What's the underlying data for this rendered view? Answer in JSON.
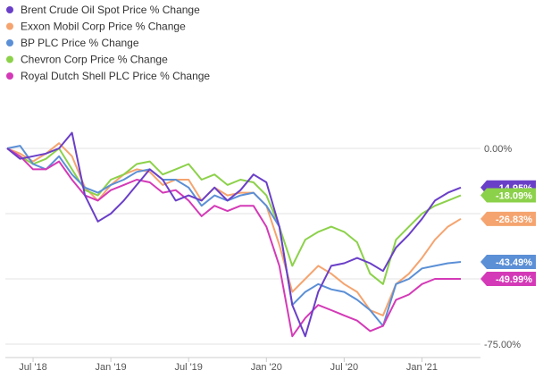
{
  "chart_data": {
    "type": "line",
    "title": "",
    "xlabel": "",
    "ylabel": "",
    "x_tick_labels": [
      "Jul '18",
      "Jan '19",
      "Jul '19",
      "Jan '20",
      "Jul '20",
      "Jan '21"
    ],
    "y_tick_labels": [
      "0.00%",
      "-75.00%"
    ],
    "ylim": [
      -78,
      8
    ],
    "grid": "horizontal",
    "legend_position": "top-left",
    "x": [
      "2018-05",
      "2018-06",
      "2018-07",
      "2018-08",
      "2018-09",
      "2018-10",
      "2018-11",
      "2018-12",
      "2019-01",
      "2019-02",
      "2019-03",
      "2019-04",
      "2019-05",
      "2019-06",
      "2019-07",
      "2019-08",
      "2019-09",
      "2019-10",
      "2019-11",
      "2019-12",
      "2020-01",
      "2020-02",
      "2020-03",
      "2020-04",
      "2020-05",
      "2020-06",
      "2020-07",
      "2020-08",
      "2020-09",
      "2020-10",
      "2020-11",
      "2020-12",
      "2021-01",
      "2021-02",
      "2021-03",
      "2021-04"
    ],
    "series": [
      {
        "name": "Brent Crude Oil Spot Price % Change",
        "color": "#6a3fc8",
        "end_label": "-14.95%",
        "values": [
          0.0,
          -4.0,
          -3.0,
          -2.0,
          0.0,
          6.0,
          -18.0,
          -28.0,
          -25.0,
          -20.0,
          -14.0,
          -8.0,
          -12.0,
          -20.0,
          -18.0,
          -20.0,
          -15.0,
          -20.0,
          -16.0,
          -10.0,
          -13.0,
          -30.0,
          -60.0,
          -72.0,
          -55.0,
          -45.0,
          -44.0,
          -42.0,
          -44.0,
          -47.0,
          -38.0,
          -33.0,
          -27.0,
          -20.0,
          -17.0,
          -15.0
        ]
      },
      {
        "name": "Exxon Mobil Corp Price % Change",
        "color": "#f5a46f",
        "end_label": "-26.83%",
        "values": [
          0.0,
          -2.0,
          -5.0,
          -2.0,
          2.0,
          -3.0,
          -15.0,
          -20.0,
          -14.0,
          -10.0,
          -8.0,
          -9.0,
          -14.0,
          -12.0,
          -12.0,
          -20.0,
          -15.0,
          -18.0,
          -17.0,
          -17.0,
          -22.0,
          -37.0,
          -55.0,
          -50.0,
          -45.0,
          -48.0,
          -52.0,
          -55.0,
          -62.0,
          -64.0,
          -52.0,
          -48.0,
          -42.0,
          -35.0,
          -30.0,
          -27.0
        ]
      },
      {
        "name": "BP PLC Price % Change",
        "color": "#5b8fd6",
        "end_label": "-43.49%",
        "values": [
          0.0,
          1.0,
          -6.0,
          -8.0,
          -3.0,
          -10.0,
          -15.0,
          -17.0,
          -14.0,
          -12.0,
          -9.0,
          -8.0,
          -12.0,
          -12.0,
          -15.0,
          -22.0,
          -18.0,
          -20.0,
          -18.0,
          -17.0,
          -22.0,
          -30.0,
          -60.0,
          -55.0,
          -52.0,
          -54.0,
          -55.0,
          -58.0,
          -62.0,
          -68.0,
          -52.0,
          -50.0,
          -46.0,
          -45.0,
          -44.0,
          -43.5
        ]
      },
      {
        "name": "Chevron Corp Price % Change",
        "color": "#8cd14a",
        "end_label": "-18.09%",
        "values": [
          0.0,
          -3.0,
          -6.0,
          -4.0,
          0.0,
          -8.0,
          -16.0,
          -18.0,
          -12.0,
          -10.0,
          -6.0,
          -5.0,
          -10.0,
          -8.0,
          -6.0,
          -12.0,
          -10.0,
          -14.0,
          -12.0,
          -13.0,
          -18.0,
          -30.0,
          -45.0,
          -35.0,
          -32.0,
          -30.0,
          -32.0,
          -36.0,
          -48.0,
          -52.0,
          -35.0,
          -30.0,
          -25.0,
          -22.0,
          -20.0,
          -18.0
        ]
      },
      {
        "name": "Royal Dutch Shell PLC Price % Change",
        "color": "#d43ab7",
        "end_label": "-49.99%",
        "values": [
          0.0,
          -3.0,
          -8.0,
          -8.0,
          -5.0,
          -12.0,
          -18.0,
          -20.0,
          -16.0,
          -14.0,
          -12.0,
          -13.0,
          -17.0,
          -16.0,
          -20.0,
          -26.0,
          -22.0,
          -24.0,
          -22.0,
          -22.0,
          -30.0,
          -45.0,
          -72.0,
          -65.0,
          -60.0,
          -62.0,
          -64.0,
          -66.0,
          -70.0,
          -68.0,
          -58.0,
          -56.0,
          -52.0,
          -50.0,
          -50.0,
          -50.0
        ]
      }
    ]
  }
}
